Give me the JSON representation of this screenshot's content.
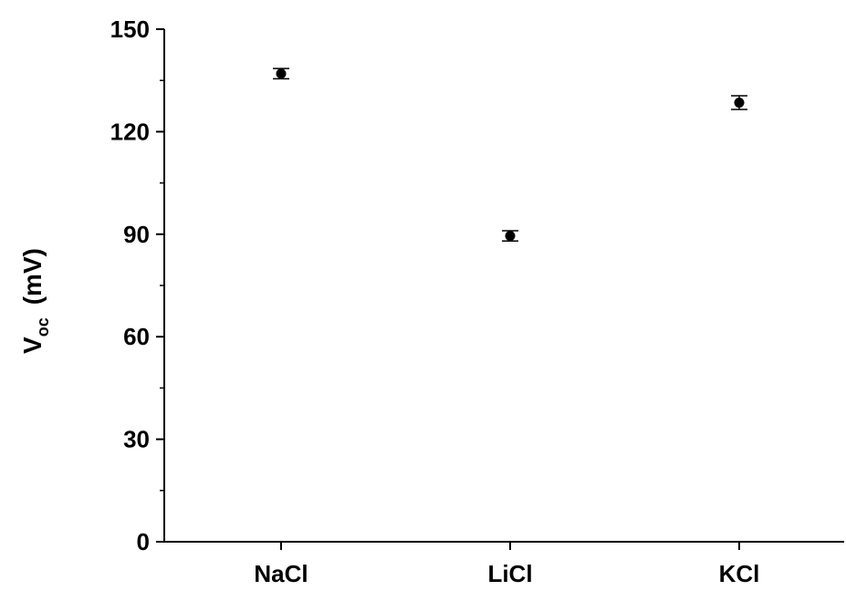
{
  "chart_data": {
    "type": "scatter",
    "title": "",
    "xlabel": "",
    "ylabel": {
      "main": "V",
      "sub": "oc",
      "unit": "(mV)"
    },
    "categories": [
      "NaCl",
      "LiCl",
      "KCl"
    ],
    "series": [
      {
        "values": [
          137,
          89.5,
          128.5
        ],
        "error": [
          1.5,
          1.5,
          2
        ]
      }
    ],
    "ylim": [
      0,
      150
    ],
    "yticks": [
      0,
      30,
      60,
      90,
      120,
      150
    ],
    "grid": false,
    "legend": "none"
  },
  "colors": {
    "axis": "#000000",
    "marker": "#000000"
  }
}
